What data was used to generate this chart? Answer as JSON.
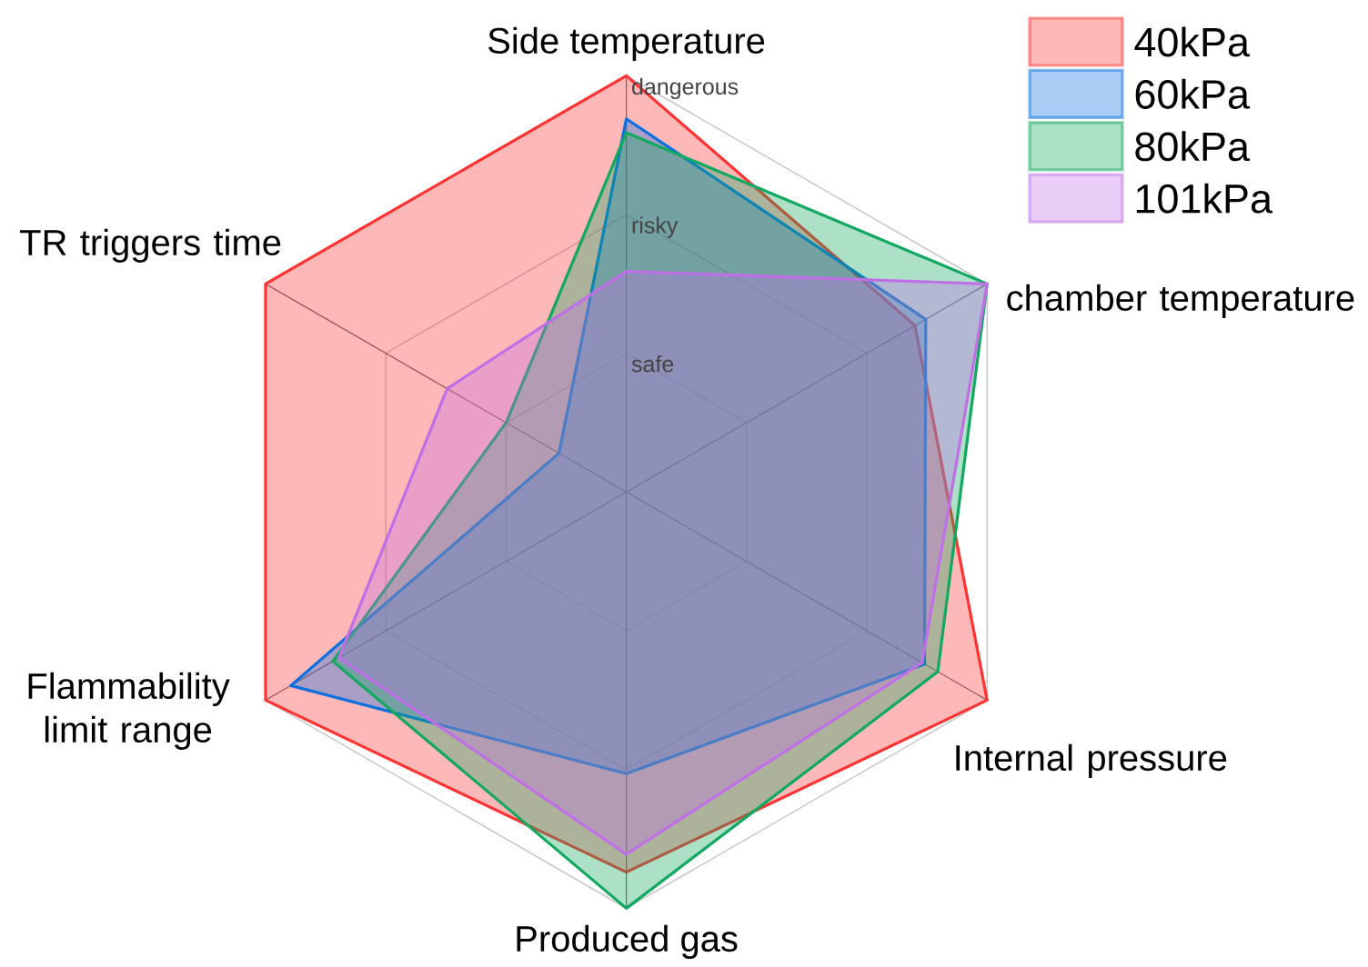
{
  "chart_data": {
    "type": "radar",
    "categories": [
      "Side temperature",
      "chamber temperature",
      "Internal pressure",
      "Produced gas",
      "Flammability limit range",
      "TR triggers time"
    ],
    "series": [
      {
        "name": "40kPa",
        "color": "#ff3333",
        "values": [
          3,
          2.4,
          3,
          2.74,
          3,
          3
        ]
      },
      {
        "name": "60kPa",
        "color": "#0a70e0",
        "values": [
          2.69,
          2.49,
          2.48,
          2.03,
          2.79,
          0.56
        ]
      },
      {
        "name": "80kPa",
        "color": "#12a860",
        "values": [
          2.59,
          3,
          2.59,
          3,
          2.44,
          1.0
        ]
      },
      {
        "name": "101kPa",
        "color": "#c070e6",
        "values": [
          1.59,
          3,
          2.46,
          2.61,
          2.39,
          1.49
        ]
      }
    ],
    "ylim": [
      0,
      3
    ],
    "yticks": [
      {
        "value": 1,
        "label": "safe"
      },
      {
        "value": 2,
        "label": "risky"
      },
      {
        "value": 3,
        "label": "dangerous"
      }
    ],
    "grid": true,
    "legend": "top right"
  }
}
